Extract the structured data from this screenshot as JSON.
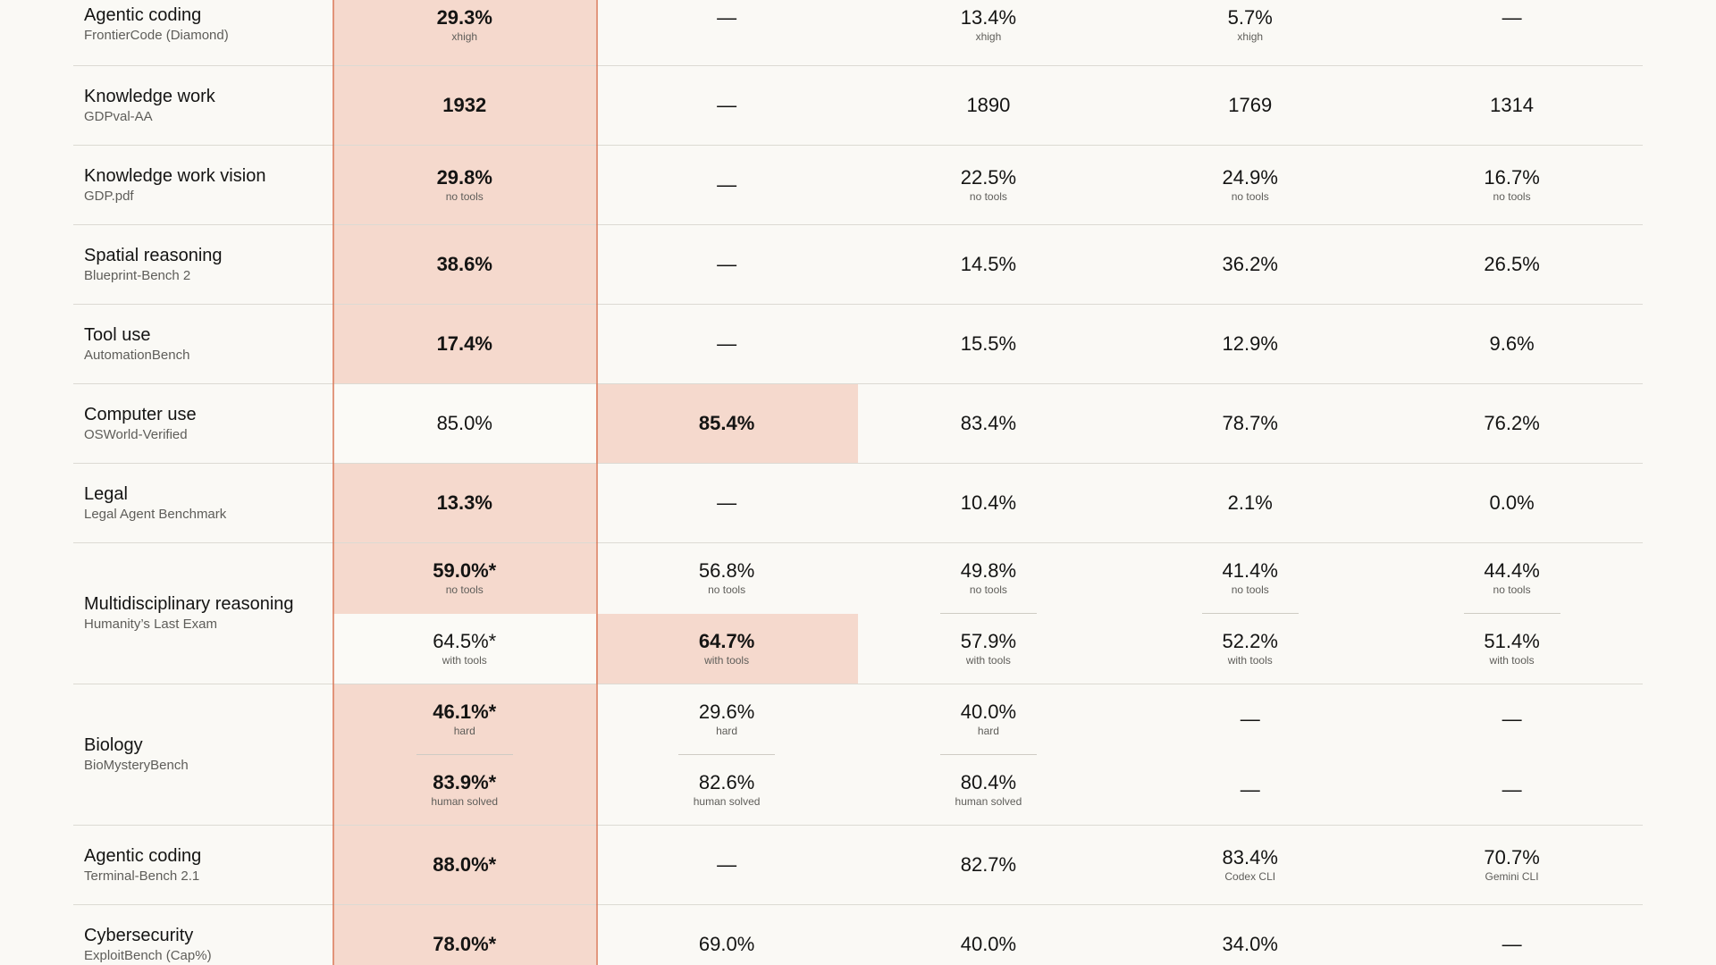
{
  "rows": [
    {
      "category": "Agentic coding",
      "benchmark": "FrontierCode (Diamond)",
      "cells": [
        [
          {
            "value": "29.3%",
            "note": "xhigh",
            "bold": true,
            "hl": true
          }
        ],
        [
          {
            "value": "—",
            "note": "",
            "bold": false,
            "hl": false
          }
        ],
        [
          {
            "value": "13.4%",
            "note": "xhigh",
            "bold": false,
            "hl": false
          }
        ],
        [
          {
            "value": "5.7%",
            "note": "xhigh",
            "bold": false,
            "hl": false
          }
        ],
        [
          {
            "value": "—",
            "note": "",
            "bold": false,
            "hl": false
          }
        ]
      ]
    },
    {
      "category": "Knowledge work",
      "benchmark": "GDPval-AA",
      "cells": [
        [
          {
            "value": "1932",
            "note": "",
            "bold": true,
            "hl": true
          }
        ],
        [
          {
            "value": "—",
            "note": "",
            "bold": false,
            "hl": false
          }
        ],
        [
          {
            "value": "1890",
            "note": "",
            "bold": false,
            "hl": false
          }
        ],
        [
          {
            "value": "1769",
            "note": "",
            "bold": false,
            "hl": false
          }
        ],
        [
          {
            "value": "1314",
            "note": "",
            "bold": false,
            "hl": false
          }
        ]
      ]
    },
    {
      "category": "Knowledge work vision",
      "benchmark": "GDP.pdf",
      "cells": [
        [
          {
            "value": "29.8%",
            "note": "no tools",
            "bold": true,
            "hl": true
          }
        ],
        [
          {
            "value": "—",
            "note": "",
            "bold": false,
            "hl": false
          }
        ],
        [
          {
            "value": "22.5%",
            "note": "no tools",
            "bold": false,
            "hl": false
          }
        ],
        [
          {
            "value": "24.9%",
            "note": "no tools",
            "bold": false,
            "hl": false
          }
        ],
        [
          {
            "value": "16.7%",
            "note": "no tools",
            "bold": false,
            "hl": false
          }
        ]
      ]
    },
    {
      "category": "Spatial reasoning",
      "benchmark": "Blueprint-Bench 2",
      "cells": [
        [
          {
            "value": "38.6%",
            "note": "",
            "bold": true,
            "hl": true
          }
        ],
        [
          {
            "value": "—",
            "note": "",
            "bold": false,
            "hl": false
          }
        ],
        [
          {
            "value": "14.5%",
            "note": "",
            "bold": false,
            "hl": false
          }
        ],
        [
          {
            "value": "36.2%",
            "note": "",
            "bold": false,
            "hl": false
          }
        ],
        [
          {
            "value": "26.5%",
            "note": "",
            "bold": false,
            "hl": false
          }
        ]
      ]
    },
    {
      "category": "Tool use",
      "benchmark": "AutomationBench",
      "cells": [
        [
          {
            "value": "17.4%",
            "note": "",
            "bold": true,
            "hl": true
          }
        ],
        [
          {
            "value": "—",
            "note": "",
            "bold": false,
            "hl": false
          }
        ],
        [
          {
            "value": "15.5%",
            "note": "",
            "bold": false,
            "hl": false
          }
        ],
        [
          {
            "value": "12.9%",
            "note": "",
            "bold": false,
            "hl": false
          }
        ],
        [
          {
            "value": "9.6%",
            "note": "",
            "bold": false,
            "hl": false
          }
        ]
      ]
    },
    {
      "category": "Computer use",
      "benchmark": "OSWorld-Verified",
      "cells": [
        [
          {
            "value": "85.0%",
            "note": "",
            "bold": false,
            "hl": false,
            "white": true
          }
        ],
        [
          {
            "value": "85.4%",
            "note": "",
            "bold": true,
            "hl": true
          }
        ],
        [
          {
            "value": "83.4%",
            "note": "",
            "bold": false,
            "hl": false
          }
        ],
        [
          {
            "value": "78.7%",
            "note": "",
            "bold": false,
            "hl": false
          }
        ],
        [
          {
            "value": "76.2%",
            "note": "",
            "bold": false,
            "hl": false
          }
        ]
      ]
    },
    {
      "category": "Legal",
      "benchmark": "Legal Agent Benchmark",
      "cells": [
        [
          {
            "value": "13.3%",
            "note": "",
            "bold": true,
            "hl": true
          }
        ],
        [
          {
            "value": "—",
            "note": "",
            "bold": false,
            "hl": false
          }
        ],
        [
          {
            "value": "10.4%",
            "note": "",
            "bold": false,
            "hl": false
          }
        ],
        [
          {
            "value": "2.1%",
            "note": "",
            "bold": false,
            "hl": false
          }
        ],
        [
          {
            "value": "0.0%",
            "note": "",
            "bold": false,
            "hl": false
          }
        ]
      ]
    },
    {
      "category": "Multidisciplinary reasoning",
      "benchmark": "Humanity’s Last Exam",
      "cells": [
        [
          {
            "value": "59.0%*",
            "note": "no tools",
            "bold": true,
            "hl": true
          },
          {
            "value": "64.5%*",
            "note": "with tools",
            "bold": false,
            "hl": false,
            "white": true
          }
        ],
        [
          {
            "value": "56.8%",
            "note": "no tools",
            "bold": false,
            "hl": false
          },
          {
            "value": "64.7%",
            "note": "with tools",
            "bold": true,
            "hl": true
          }
        ],
        [
          {
            "value": "49.8%",
            "note": "no tools",
            "bold": false,
            "hl": false,
            "divider": true
          },
          {
            "value": "57.9%",
            "note": "with tools",
            "bold": false,
            "hl": false
          }
        ],
        [
          {
            "value": "41.4%",
            "note": "no tools",
            "bold": false,
            "hl": false,
            "divider": true
          },
          {
            "value": "52.2%",
            "note": "with tools",
            "bold": false,
            "hl": false
          }
        ],
        [
          {
            "value": "44.4%",
            "note": "no tools",
            "bold": false,
            "hl": false,
            "divider": true
          },
          {
            "value": "51.4%",
            "note": "with tools",
            "bold": false,
            "hl": false
          }
        ]
      ]
    },
    {
      "category": "Biology",
      "benchmark": "BioMysteryBench",
      "cells": [
        [
          {
            "value": "46.1%*",
            "note": "hard",
            "bold": true,
            "hl": true,
            "divider": true
          },
          {
            "value": "83.9%*",
            "note": "human solved",
            "bold": true,
            "hl": true
          }
        ],
        [
          {
            "value": "29.6%",
            "note": "hard",
            "bold": false,
            "hl": false,
            "divider": true
          },
          {
            "value": "82.6%",
            "note": "human solved",
            "bold": false,
            "hl": false
          }
        ],
        [
          {
            "value": "40.0%",
            "note": "hard",
            "bold": false,
            "hl": false,
            "divider": true
          },
          {
            "value": "80.4%",
            "note": "human solved",
            "bold": false,
            "hl": false
          }
        ],
        [
          {
            "value": "—",
            "note": "",
            "bold": false,
            "hl": false
          },
          {
            "value": "—",
            "note": "",
            "bold": false,
            "hl": false
          }
        ],
        [
          {
            "value": "—",
            "note": "",
            "bold": false,
            "hl": false
          },
          {
            "value": "—",
            "note": "",
            "bold": false,
            "hl": false
          }
        ]
      ]
    },
    {
      "category": "Agentic coding",
      "benchmark": "Terminal-Bench 2.1",
      "cells": [
        [
          {
            "value": "88.0%*",
            "note": "",
            "bold": true,
            "hl": true
          }
        ],
        [
          {
            "value": "—",
            "note": "",
            "bold": false,
            "hl": false
          }
        ],
        [
          {
            "value": "82.7%",
            "note": "",
            "bold": false,
            "hl": false
          }
        ],
        [
          {
            "value": "83.4%",
            "note": "Codex CLI",
            "bold": false,
            "hl": false
          }
        ],
        [
          {
            "value": "70.7%",
            "note": "Gemini CLI",
            "bold": false,
            "hl": false
          }
        ]
      ]
    },
    {
      "category": "Cybersecurity",
      "benchmark": "ExploitBench (Cap%)",
      "cells": [
        [
          {
            "value": "78.0%*",
            "note": "",
            "bold": true,
            "hl": true
          }
        ],
        [
          {
            "value": "69.0%",
            "note": "",
            "bold": false,
            "hl": false
          }
        ],
        [
          {
            "value": "40.0%",
            "note": "",
            "bold": false,
            "hl": false
          }
        ],
        [
          {
            "value": "34.0%",
            "note": "",
            "bold": false,
            "hl": false
          }
        ],
        [
          {
            "value": "—",
            "note": "",
            "bold": false,
            "hl": false
          }
        ]
      ]
    }
  ],
  "colors": {
    "highlight": "#f5d9cd",
    "accent_line": "#d97757",
    "background": "#faf9f5"
  }
}
